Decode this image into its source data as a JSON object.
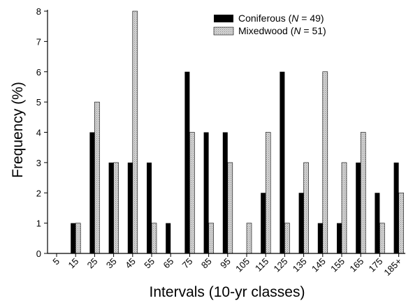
{
  "chart_data": {
    "type": "bar",
    "xlabel": "Intervals (10-yr classes)",
    "ylabel": "Frequency (%)",
    "ylim": [
      0,
      8
    ],
    "yticks": [
      "0",
      "1",
      "2",
      "3",
      "4",
      "5",
      "6",
      "7",
      "8"
    ],
    "categories": [
      "5",
      "15",
      "25",
      "35",
      "45",
      "55",
      "65",
      "75",
      "85",
      "95",
      "105",
      "115",
      "125",
      "135",
      "145",
      "155",
      "165",
      "175",
      "185+"
    ],
    "series": [
      {
        "name": "Coniferous",
        "legend_label": {
          "prefix": "Coniferous (",
          "n": "N",
          "suffix": " = 49)"
        },
        "color": "#000000",
        "values": [
          0,
          1,
          4,
          3,
          3,
          3,
          1,
          6,
          4,
          4,
          0,
          2,
          6,
          2,
          1,
          1,
          3,
          2,
          3
        ]
      },
      {
        "name": "Mixedwood",
        "legend_label": {
          "prefix": "Mixedwood (",
          "n": "N",
          "suffix": " = 51)"
        },
        "color": "#c8c8c8",
        "values": [
          0,
          1,
          5,
          3,
          8,
          1,
          0,
          4,
          1,
          3,
          1,
          4,
          1,
          3,
          6,
          3,
          4,
          1,
          2
        ]
      }
    ],
    "legend_position": "top-right",
    "grid": false
  }
}
